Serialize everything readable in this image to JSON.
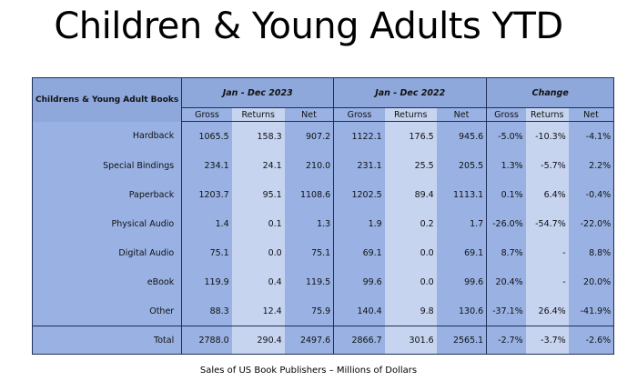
{
  "title": "Children & Young Adults YTD",
  "table": {
    "corner": "Childrens & Young Adult Books",
    "groups": [
      "Jan - Dec 2023",
      "Jan - Dec 2022",
      "Change"
    ],
    "subheaders": [
      "Gross",
      "Returns",
      "Net",
      "Gross",
      "Returns",
      "Net",
      "Gross",
      "Returns",
      "Net"
    ],
    "rows": [
      [
        "Hardback",
        "1065.5",
        "158.3",
        "907.2",
        "1122.1",
        "176.5",
        "945.6",
        "-5.0%",
        "-10.3%",
        "-4.1%"
      ],
      [
        "Special Bindings",
        "234.1",
        "24.1",
        "210.0",
        "231.1",
        "25.5",
        "205.5",
        "1.3%",
        "-5.7%",
        "2.2%"
      ],
      [
        "Paperback",
        "1203.7",
        "95.1",
        "1108.6",
        "1202.5",
        "89.4",
        "1113.1",
        "0.1%",
        "6.4%",
        "-0.4%"
      ],
      [
        "Physical Audio",
        "1.4",
        "0.1",
        "1.3",
        "1.9",
        "0.2",
        "1.7",
        "-26.0%",
        "-54.7%",
        "-22.0%"
      ],
      [
        "Digital Audio",
        "75.1",
        "0.0",
        "75.1",
        "69.1",
        "0.0",
        "69.1",
        "8.7%",
        "-",
        "8.8%"
      ],
      [
        "eBook",
        "119.9",
        "0.4",
        "119.5",
        "99.6",
        "0.0",
        "99.6",
        "20.4%",
        "-",
        "20.0%"
      ],
      [
        "Other",
        "88.3",
        "12.4",
        "75.9",
        "140.4",
        "9.8",
        "130.6",
        "-37.1%",
        "26.4%",
        "-41.9%"
      ],
      [
        "Total",
        "2788.0",
        "290.4",
        "2497.6",
        "2866.7",
        "301.6",
        "2565.1",
        "-2.7%",
        "-3.7%",
        "-2.6%"
      ]
    ]
  },
  "caption": "Sales of US Book Publishers – Millions of Dollars"
}
